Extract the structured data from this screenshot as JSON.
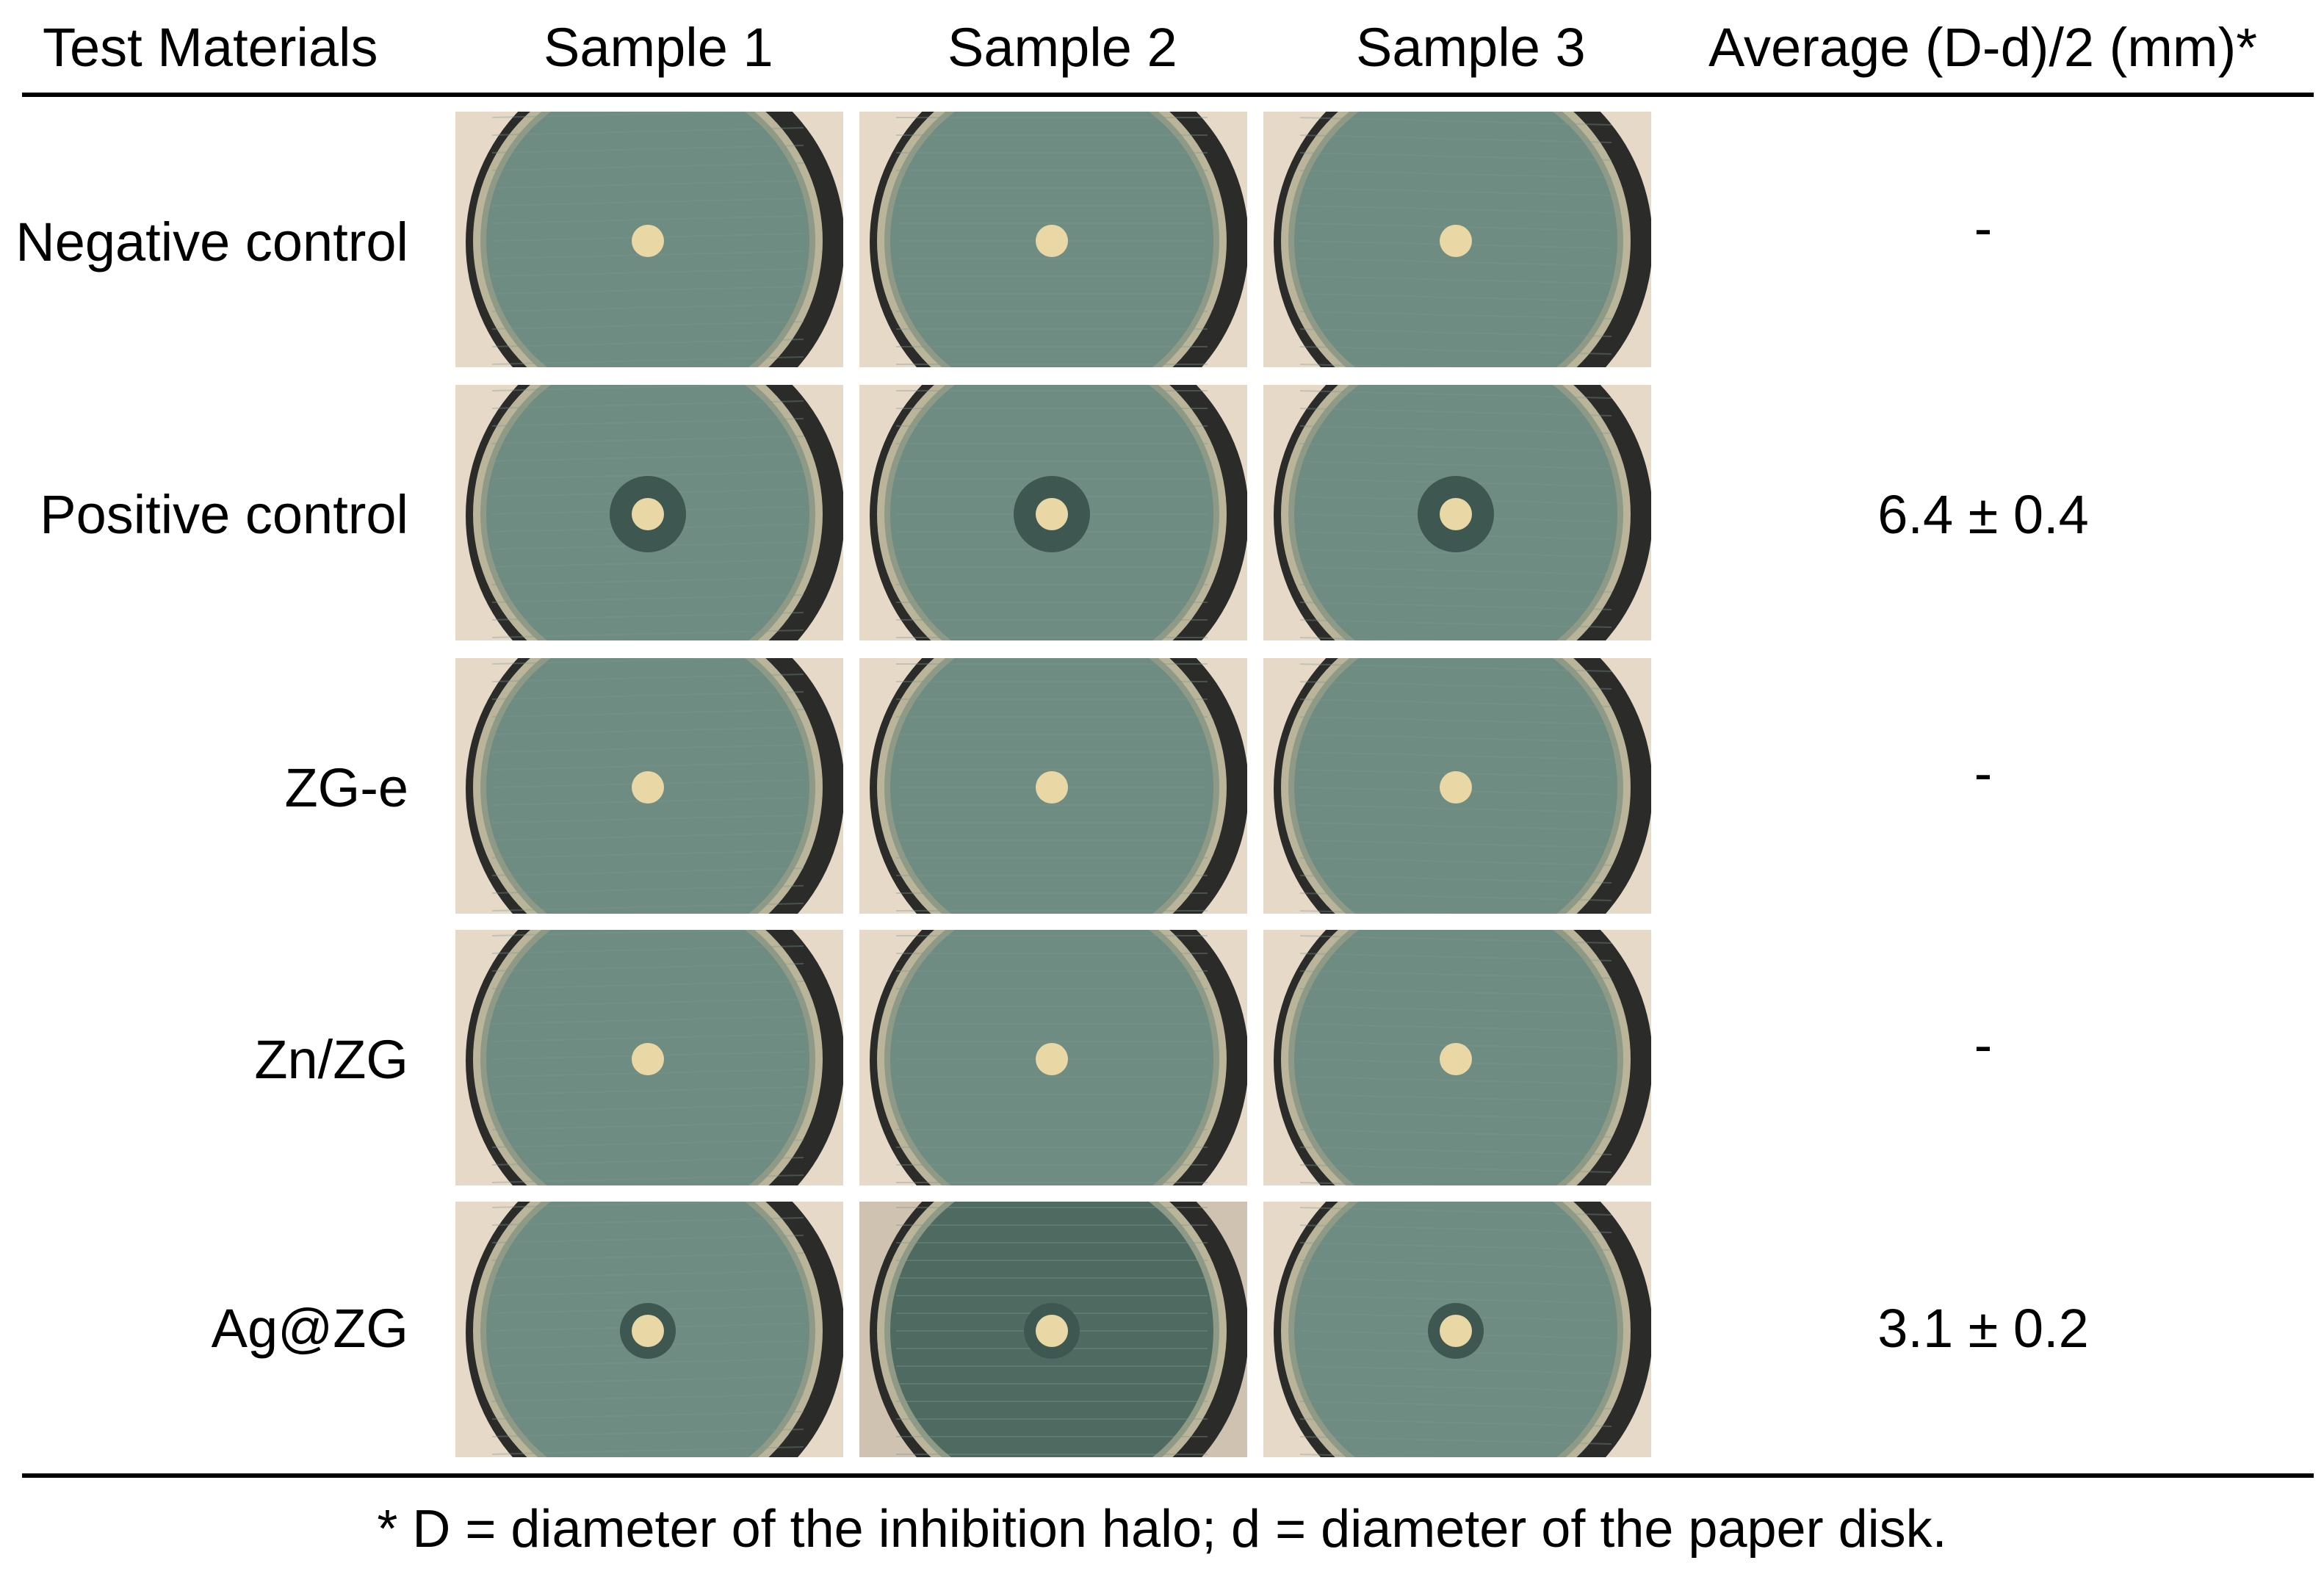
{
  "table": {
    "headers": [
      "Test Materials",
      "Sample 1",
      "Sample 2",
      "Sample 3",
      "Average (D-d)/2 (mm)*"
    ],
    "rows": [
      {
        "label": "Negative control",
        "average": "-",
        "halo": "none"
      },
      {
        "label": "Positive control",
        "average": "6.4 ± 0.4",
        "halo": "large"
      },
      {
        "label": "ZG-e",
        "average": "-",
        "halo": "none"
      },
      {
        "label": "Zn/ZG",
        "average": "-",
        "halo": "none"
      },
      {
        "label": "Ag@ZG",
        "average": "3.1 ± 0.2",
        "halo": "small"
      }
    ],
    "footnote": "* D = diameter of the inhibition halo; d = diameter of the paper disk."
  },
  "colors": {
    "agar": "#6f8c82",
    "agar_dark": "#4f6a60",
    "dish_rim": "#2b2b2a",
    "background": "#e6d9c8",
    "disk": "#e9d7a6",
    "halo": "#3e5750"
  }
}
